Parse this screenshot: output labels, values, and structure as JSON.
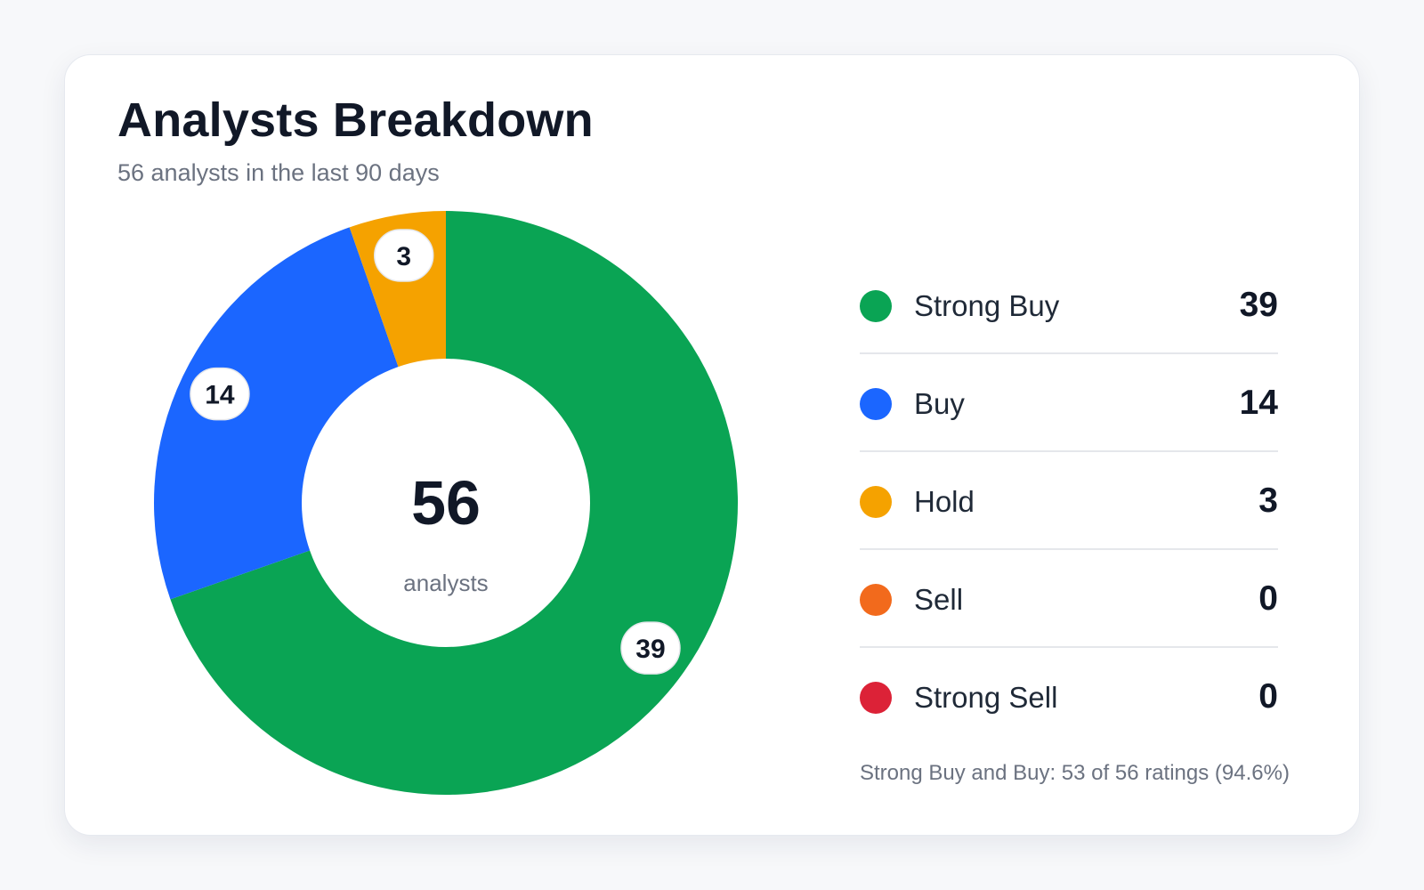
{
  "card": {
    "title": "Analysts Breakdown",
    "subtitle": "56 analysts in the last 90 days",
    "footnote": "Strong Buy and Buy: 53 of 56 ratings (94.6%)"
  },
  "chart_data": {
    "type": "pie",
    "title": "Analysts Breakdown",
    "subtitle": "56 analysts in the last 90 days",
    "total": 56,
    "center_value": "56",
    "center_label": "analysts",
    "categories": [
      "Strong Buy",
      "Buy",
      "Hold",
      "Sell",
      "Strong Sell"
    ],
    "values": [
      39,
      14,
      3,
      0,
      0
    ],
    "colors": [
      "#0aa454",
      "#1b66ff",
      "#f5a200",
      "#f26a1c",
      "#dc2237"
    ],
    "donut": true,
    "legend_position": "right"
  }
}
